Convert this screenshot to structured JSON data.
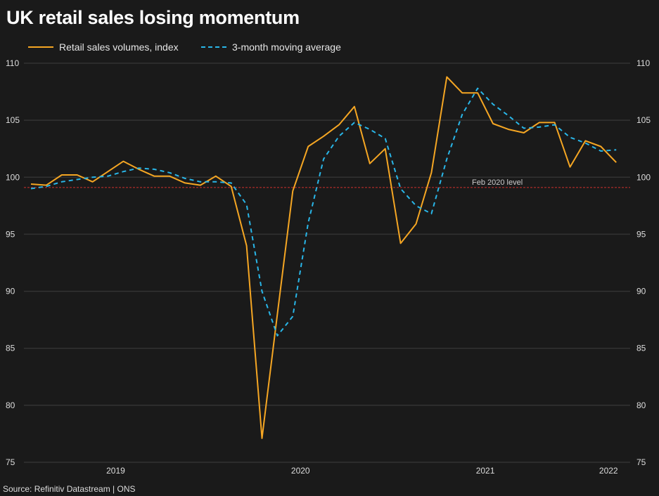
{
  "chart_data": {
    "type": "line",
    "title": "UK retail sales losing momentum",
    "xlabel": "",
    "ylabel": "",
    "ylim": [
      75,
      110
    ],
    "yticks": [
      75,
      80,
      85,
      90,
      95,
      100,
      105,
      110
    ],
    "x_start": "2019-01",
    "x_end": "2022-03",
    "x_tick_labels": [
      {
        "label": "2019",
        "month_index": 5.5
      },
      {
        "label": "2020",
        "month_index": 17.5
      },
      {
        "label": "2021",
        "month_index": 29.5
      },
      {
        "label": "2022",
        "month_index": 37.5
      }
    ],
    "grid": true,
    "legend_position": "top-left",
    "series": [
      {
        "name": "Retail sales volumes, index",
        "color": "#f5a623",
        "style": "solid",
        "values": [
          99.4,
          99.3,
          100.2,
          100.2,
          99.6,
          100.5,
          101.4,
          100.7,
          100.1,
          100.1,
          99.5,
          99.3,
          100.1,
          99.2,
          94.0,
          77.1,
          88.0,
          98.8,
          102.7,
          103.6,
          104.6,
          106.2,
          101.2,
          102.5,
          94.2,
          95.9,
          100.4,
          108.8,
          107.4,
          107.4,
          104.7,
          104.2,
          103.9,
          104.8,
          104.8,
          100.9,
          103.2,
          102.7,
          101.3
        ]
      },
      {
        "name": "3-month moving average",
        "color": "#29b6e8",
        "style": "dashed",
        "values": [
          99.0,
          99.2,
          99.6,
          99.8,
          100.0,
          100.1,
          100.5,
          100.8,
          100.7,
          100.4,
          99.9,
          99.6,
          99.6,
          99.5,
          97.6,
          90.0,
          86.1,
          87.8,
          96.0,
          101.6,
          103.6,
          104.8,
          104.2,
          103.4,
          99.0,
          97.5,
          96.8,
          101.6,
          105.5,
          107.8,
          106.4,
          105.4,
          104.3,
          104.4,
          104.6,
          103.5,
          103.0,
          102.3,
          102.4
        ]
      }
    ],
    "annotations": [
      {
        "text": "Feb 2020 level",
        "y": 99.1,
        "color": "#d0312d"
      }
    ],
    "source": "Source: Refinitiv Datastream | ONS"
  }
}
